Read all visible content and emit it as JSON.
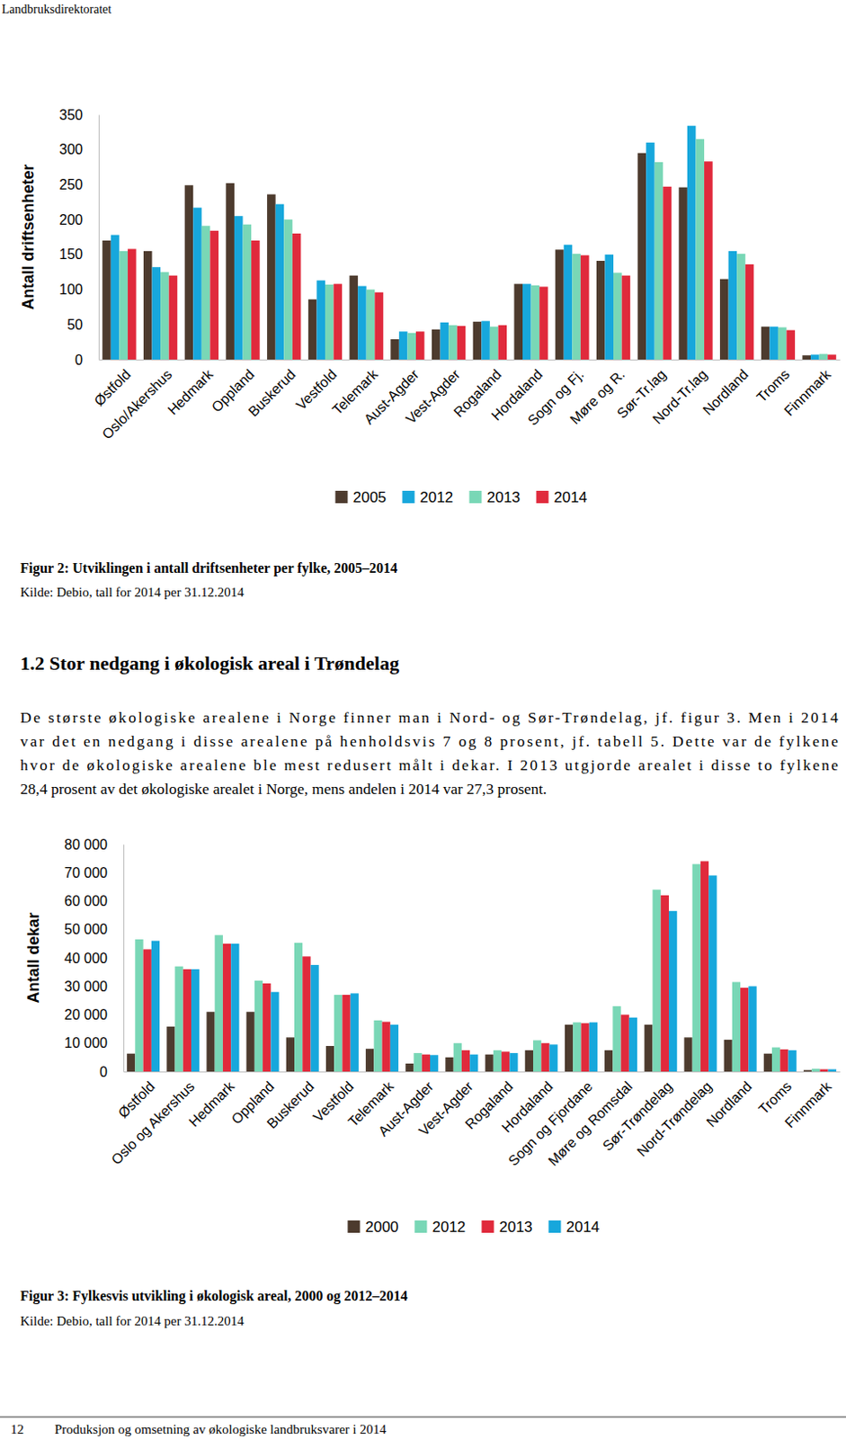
{
  "header": "Landbruksdirektoratet",
  "chart_data": [
    {
      "type": "bar",
      "title": "Figur 2: Utviklingen i antall driftsenheter per fylke, 2005–2014",
      "subtitle": "Kilde: Debio, tall for 2014 per 31.12.2014",
      "y_label": "Antall driftsenheter",
      "categories": [
        "Østfold",
        "Oslo/Akershus",
        "Hedmark",
        "Oppland",
        "Buskerud",
        "Vestfold",
        "Telemark",
        "Aust-Agder",
        "Vest-Agder",
        "Rogaland",
        "Hordaland",
        "Sogn og Fj.",
        "Møre og R.",
        "Sør-Tr.lag",
        "Nord-Tr.lag",
        "Nordland",
        "Troms",
        "Finnmark"
      ],
      "series": [
        {
          "name": "2005",
          "color": "#4d3b2e",
          "values": [
            170,
            155,
            249,
            252,
            236,
            86,
            120,
            29,
            43,
            54,
            108,
            157,
            141,
            295,
            246,
            115,
            47,
            6
          ]
        },
        {
          "name": "2012",
          "color": "#17a7dc",
          "values": [
            178,
            132,
            217,
            205,
            222,
            113,
            105,
            40,
            53,
            55,
            108,
            164,
            150,
            310,
            334,
            155,
            47,
            7
          ]
        },
        {
          "name": "2013",
          "color": "#79d7b6",
          "values": [
            155,
            125,
            191,
            193,
            200,
            107,
            100,
            38,
            49,
            47,
            106,
            151,
            124,
            282,
            315,
            151,
            46,
            8
          ]
        },
        {
          "name": "2014",
          "color": "#e02a3c",
          "values": [
            158,
            120,
            184,
            170,
            180,
            108,
            96,
            40,
            48,
            49,
            104,
            149,
            120,
            247,
            283,
            136,
            42,
            7
          ]
        }
      ],
      "ylim": [
        0,
        350
      ],
      "yticks": [
        0,
        50,
        100,
        150,
        200,
        250,
        300,
        350
      ],
      "grid": false,
      "legend": "bottom"
    },
    {
      "type": "bar",
      "title": "Figur 3: Fylkesvis utvikling i økologisk areal, 2000 og 2012–2014",
      "subtitle": "Kilde: Debio, tall for 2014 per 31.12.2014",
      "y_label": "Antall dekar",
      "categories": [
        "Østfold",
        "Oslo og Akershus",
        "Hedmark",
        "Oppland",
        "Buskerud",
        "Vestfold",
        "Telemark",
        "Aust-Agder",
        "Vest-Agder",
        "Rogaland",
        "Hordaland",
        "Sogn og Fjordane",
        "Møre og Romsdal",
        "Sør-Trøndelag",
        "Nord-Trøndelag",
        "Nordland",
        "Troms",
        "Finnmark"
      ],
      "series": [
        {
          "name": "2000",
          "color": "#4d3b2e",
          "values": [
            6300,
            15800,
            21000,
            21000,
            12000,
            9000,
            8000,
            2800,
            5000,
            6000,
            7500,
            16500,
            7500,
            16500,
            12000,
            11200,
            6300,
            500
          ]
        },
        {
          "name": "2012",
          "color": "#79d7b6",
          "values": [
            46500,
            37000,
            48000,
            32000,
            45300,
            27000,
            18000,
            6500,
            10000,
            7500,
            11000,
            17300,
            23000,
            64000,
            73000,
            31500,
            8500,
            1000
          ]
        },
        {
          "name": "2013",
          "color": "#e02a3c",
          "values": [
            43000,
            36000,
            45000,
            31000,
            40500,
            27000,
            17500,
            6000,
            7500,
            7000,
            10000,
            17000,
            20000,
            62000,
            74000,
            29500,
            7800,
            800
          ]
        },
        {
          "name": "2014",
          "color": "#17a7dc",
          "values": [
            46000,
            36000,
            45000,
            28000,
            37500,
            27500,
            16500,
            5800,
            6000,
            6500,
            9500,
            17300,
            19000,
            56500,
            69000,
            30000,
            7500,
            800
          ]
        }
      ],
      "ylim": [
        0,
        80000
      ],
      "yticks": [
        0,
        {
          "value": 10000,
          "label": "10 000"
        },
        {
          "value": 20000,
          "label": "20 000"
        },
        {
          "value": 30000,
          "label": "30 000"
        },
        {
          "value": 40000,
          "label": "40 000"
        },
        {
          "value": 50000,
          "label": "50 000"
        },
        {
          "value": 60000,
          "label": "60 000"
        },
        {
          "value": 70000,
          "label": "70 000"
        },
        {
          "value": 80000,
          "label": "80 000"
        }
      ],
      "grid": false,
      "legend": "bottom"
    }
  ],
  "section": {
    "heading": "1.2 Stor nedgang i økologisk areal i Trøndelag",
    "paragraph": [
      "De største økologiske arealene i Norge finner man i Nord- og Sør-Trøndelag, jf. figur 3. Men i 2014",
      "var det en nedgang i disse arealene på henholdsvis 7 og 8 prosent, jf. tabell 5. Dette var de fylkene",
      "hvor de økologiske arealene ble mest redusert målt i dekar. I 2013 utgjorde arealet i disse to fylkene",
      "28,4 prosent av det økologiske arealet i Norge, mens andelen i 2014 var 27,3 prosent."
    ]
  },
  "footer": {
    "page": 12,
    "title": "Produksjon og omsetning av økologiske landbruksvarer i 2014"
  }
}
